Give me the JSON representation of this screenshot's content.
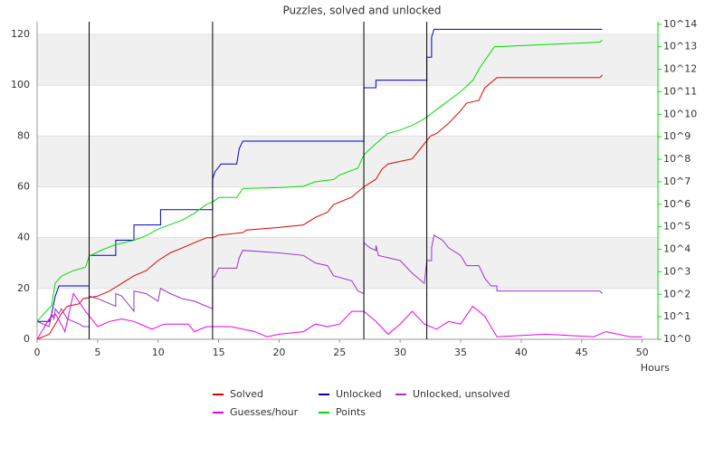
{
  "chart_data": {
    "type": "line",
    "title": "Puzzles, solved and unlocked",
    "xlabel": "Hours",
    "xlim": [
      0,
      51.3
    ],
    "xticks": [
      0,
      5,
      10,
      15,
      20,
      25,
      30,
      35,
      40,
      45,
      50
    ],
    "ylim": [
      0,
      125
    ],
    "yticks": [
      0,
      20,
      40,
      60,
      80,
      100,
      120
    ],
    "y2lim": [
      1,
      130000000000000
    ],
    "y2scale": "log",
    "y2color": "#00dd00",
    "y2ticks": [
      {
        "value": 1,
        "label": "10^0"
      },
      {
        "value": 10,
        "label": "10^1"
      },
      {
        "value": 100,
        "label": "10^2"
      },
      {
        "value": 1000,
        "label": "10^3"
      },
      {
        "value": 10000,
        "label": "10^4"
      },
      {
        "value": 100000,
        "label": "10^5"
      },
      {
        "value": 1000000,
        "label": "10^6"
      },
      {
        "value": 10000000,
        "label": "10^7"
      },
      {
        "value": 100000000,
        "label": "10^8"
      },
      {
        "value": 1000000000,
        "label": "10^9"
      },
      {
        "value": 10000000000,
        "label": "10^10"
      },
      {
        "value": 100000000000,
        "label": "10^11"
      },
      {
        "value": 1000000000000,
        "label": "10^12"
      },
      {
        "value": 10000000000000,
        "label": "10^13"
      },
      {
        "value": 100000000000000,
        "label": "10^14"
      }
    ],
    "grid": "alternate-bands",
    "band_color": "#f0f0f0",
    "event_lines": [
      4.3,
      14.5,
      27.0,
      32.2
    ],
    "event_line_color": "#000000",
    "series": [
      {
        "name": "Solved",
        "color": "#dd0000",
        "x": [
          0,
          1,
          1.5,
          2,
          2.5,
          3.5,
          3.8,
          5,
          6,
          7,
          8,
          9,
          10,
          11,
          12,
          13,
          14,
          14.5,
          15,
          17,
          17.3,
          20,
          22,
          23,
          24,
          24.5,
          26,
          27,
          28,
          28.5,
          29,
          31,
          31.5,
          32.5,
          33,
          34,
          35,
          35.5,
          36.5,
          37,
          37.5,
          38,
          46.5,
          46.7
        ],
        "values": [
          0,
          2,
          6,
          10,
          13,
          14,
          16,
          17,
          19,
          22,
          25,
          27,
          31,
          34,
          36,
          38,
          40,
          40,
          41,
          42,
          43,
          44,
          45,
          48,
          50,
          53,
          56,
          60,
          63,
          67,
          69,
          71,
          74,
          80,
          81,
          85,
          90,
          93,
          94,
          99,
          101,
          103,
          103,
          104
        ]
      },
      {
        "name": "Unlocked",
        "color": "#0000cc",
        "x": [
          0,
          1,
          1.2,
          1.5,
          1.8,
          4.3,
          4.3,
          6.5,
          6.5,
          8,
          8,
          10.2,
          10.2,
          14.5,
          14.5,
          14.7,
          15.2,
          16.5,
          16.7,
          17,
          27,
          27,
          28,
          28,
          32.2,
          32.2,
          32.6,
          32.6,
          32.8,
          46.7
        ],
        "values": [
          7,
          7,
          10,
          17,
          21,
          21,
          33,
          33,
          39,
          39,
          45,
          45,
          51,
          51,
          63,
          66,
          69,
          69,
          75,
          78,
          78,
          99,
          99,
          102,
          102,
          111,
          111,
          119,
          122,
          122
        ]
      },
      {
        "name": "Unlocked, unsolved",
        "color": "#9933cc",
        "x": [
          0,
          1,
          1.2,
          1.4,
          1.5,
          1.8,
          2,
          2.5,
          3.5,
          3.8,
          4.3,
          4.3,
          5,
          6,
          6.5,
          6.5,
          7,
          7.5,
          8,
          8,
          9,
          10,
          10.2,
          11,
          12,
          13,
          14,
          14.5,
          14.5,
          14.7,
          15,
          16.5,
          16.7,
          17,
          20,
          22,
          23,
          24,
          24.5,
          26,
          26.5,
          27,
          27,
          27.5,
          28,
          28,
          28.2,
          30,
          31,
          32,
          32.2,
          32.6,
          32.6,
          32.8,
          33.5,
          34,
          35,
          35.5,
          36.5,
          37,
          37.5,
          38,
          38,
          46.5,
          46.7
        ],
        "values": [
          7,
          5,
          10,
          8,
          12,
          10,
          12,
          8,
          6,
          5,
          5,
          17,
          16,
          14,
          13,
          18,
          17,
          14,
          11,
          19,
          18,
          15,
          20,
          18,
          16,
          15,
          13,
          12,
          24,
          25,
          28,
          28,
          32,
          35,
          34,
          33,
          30,
          29,
          25,
          23,
          19,
          18,
          38,
          36,
          35,
          37,
          33,
          31,
          26,
          22,
          31,
          31,
          36,
          41,
          39,
          36,
          33,
          29,
          29,
          24,
          21,
          21,
          19,
          19,
          18
        ]
      },
      {
        "name": "Guesses/hour",
        "color": "#ee00ee",
        "x": [
          0,
          1,
          1.5,
          2,
          2.3,
          3,
          4,
          5,
          6,
          7,
          8,
          9,
          9.5,
          10.5,
          12.5,
          13,
          14,
          16,
          17,
          18,
          19,
          20,
          22,
          23,
          24,
          25,
          26,
          27,
          28,
          29,
          30,
          31,
          32,
          33,
          34,
          35,
          36,
          37,
          38,
          42,
          46,
          47,
          48,
          49,
          50
        ],
        "values": [
          0,
          8,
          10,
          6,
          3,
          18,
          11,
          5,
          7,
          8,
          7,
          5,
          4,
          6,
          6,
          3,
          5,
          5,
          4,
          3,
          1,
          2,
          3,
          6,
          5,
          6,
          11,
          11,
          7,
          2,
          6,
          11,
          6,
          4,
          7,
          6,
          13,
          9,
          1,
          2,
          1,
          3,
          2,
          1,
          1
        ]
      },
      {
        "name": "Points",
        "color": "#00dd00",
        "axis": "y2",
        "x": [
          0,
          1.2,
          1.5,
          2,
          3,
          4,
          4.3,
          5.5,
          6.5,
          8,
          9,
          10,
          12,
          13,
          14,
          14.5,
          15,
          16.5,
          17,
          20,
          22,
          23,
          24.5,
          25,
          26.5,
          27,
          28,
          29,
          30,
          31,
          32,
          33,
          34,
          35,
          36,
          36.5,
          37,
          37.8,
          46.5,
          46.7
        ],
        "values": [
          6.3,
          32,
          316,
          631,
          1122,
          1585,
          5012,
          10000,
          16000,
          25000,
          40000,
          79000,
          200000,
          400000,
          1000000,
          1260000,
          2000000,
          2000000,
          5000000,
          5500000,
          6300000,
          10000000,
          12600000,
          20000000,
          40000000,
          160000000,
          500000000,
          1400000000,
          2000000000,
          3200000000,
          6300000000,
          16000000000,
          40000000000,
          100000000000,
          320000000000,
          1000000000000,
          2500000000000,
          10000000000000,
          16000000000000,
          20000000000000
        ]
      }
    ]
  }
}
